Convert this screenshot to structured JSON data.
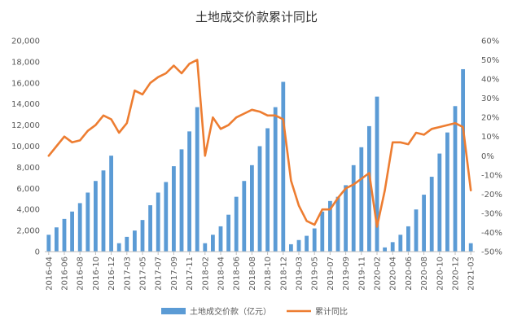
{
  "chart_data": {
    "type": "bar+line",
    "title": "土地成交价款累计同比",
    "colors": {
      "bar": "#5b9bd5",
      "line": "#ed7d31",
      "axis": "#bfbfbf",
      "text": "#595959"
    },
    "legend": {
      "placement": "bottom",
      "bar_label": "土地成交价款（亿元）",
      "line_label": "累计同比"
    },
    "left_axis": {
      "ylim": [
        0,
        20000
      ],
      "ticks": [
        "0",
        "2,000",
        "4,000",
        "6,000",
        "8,000",
        "10,000",
        "12,000",
        "14,000",
        "16,000",
        "18,000",
        "20,000"
      ]
    },
    "right_axis": {
      "ylim": [
        -50,
        60
      ],
      "ticks": [
        "-50%",
        "-40%",
        "-30%",
        "-20%",
        "-10%",
        "0%",
        "10%",
        "20%",
        "30%",
        "40%",
        "50%",
        "60%"
      ]
    },
    "x_tick_labels": [
      "2016-04",
      "2016-06",
      "2016-08",
      "2016-10",
      "2016-12",
      "2017-03",
      "2017-05",
      "2017-07",
      "2017-09",
      "2017-11",
      "2018-02",
      "2018-04",
      "2018-06",
      "2018-08",
      "2018-10",
      "2018-12",
      "2019-03",
      "2019-05",
      "2019-07",
      "2019-09",
      "2019-11",
      "2020-02",
      "2020-04",
      "2020-06",
      "2020-08",
      "2020-10",
      "2020-12",
      "2021-03"
    ],
    "categories": [
      "2016-04",
      "2016-05",
      "2016-06",
      "2016-07",
      "2016-08",
      "2016-09",
      "2016-10",
      "2016-11",
      "2016-12",
      "2017-02",
      "2017-03",
      "2017-04",
      "2017-05",
      "2017-06",
      "2017-07",
      "2017-08",
      "2017-09",
      "2017-10",
      "2017-11",
      "2017-12",
      "2018-02",
      "2018-03",
      "2018-04",
      "2018-05",
      "2018-06",
      "2018-07",
      "2018-08",
      "2018-09",
      "2018-10",
      "2018-11",
      "2018-12",
      "2019-02",
      "2019-03",
      "2019-04",
      "2019-05",
      "2019-06",
      "2019-07",
      "2019-08",
      "2019-09",
      "2019-10",
      "2019-11",
      "2019-12",
      "2020-02",
      "2020-03",
      "2020-04",
      "2020-05",
      "2020-06",
      "2020-07",
      "2020-08",
      "2020-09",
      "2020-10",
      "2020-11",
      "2020-12",
      "2021-02",
      "2021-03"
    ],
    "series": [
      {
        "name": "土地成交价款（亿元）",
        "kind": "bar",
        "axis": "left",
        "values": [
          1600,
          2300,
          3100,
          3800,
          4600,
          5600,
          6700,
          7700,
          9100,
          800,
          1400,
          2000,
          3000,
          4400,
          5600,
          6600,
          8100,
          9700,
          11400,
          13700,
          800,
          1600,
          2400,
          3500,
          5200,
          6700,
          8200,
          10000,
          11700,
          13700,
          16100,
          700,
          1100,
          1500,
          2200,
          3800,
          4800,
          5200,
          6300,
          8200,
          9900,
          11900,
          14700,
          400,
          900,
          1600,
          2400,
          4000,
          5400,
          7100,
          9300,
          11300,
          13800,
          17300,
          800
        ]
      },
      {
        "name": "累计同比",
        "kind": "line",
        "axis": "right",
        "values": [
          0,
          5,
          10,
          7,
          8,
          13,
          16,
          21,
          19,
          12,
          17,
          34,
          32,
          38,
          41,
          43,
          47,
          43,
          48,
          50,
          0,
          20,
          14,
          16,
          20,
          22,
          24,
          23,
          21,
          21,
          19,
          -13,
          -26,
          -34,
          -36,
          -28,
          -28,
          -22,
          -17,
          -15,
          -12,
          -9,
          -37,
          -18,
          7,
          7,
          6,
          12,
          11,
          14,
          15,
          16,
          17,
          15,
          -18
        ]
      }
    ]
  }
}
